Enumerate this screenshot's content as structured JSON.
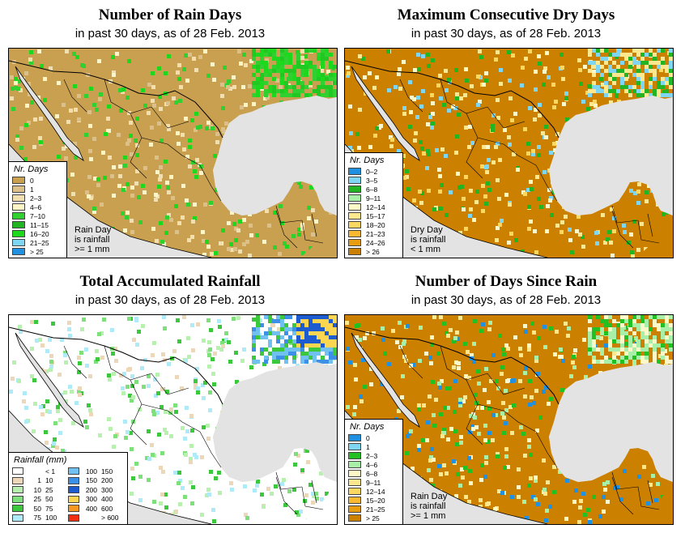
{
  "colors": {
    "rain_0": "#c8a050",
    "rain_1": "#dcc08a",
    "rain_2": "#f2dfb0",
    "rain_4": "#fdf5c6",
    "rain_7": "#2fd02f",
    "rain_11": "#22b422",
    "rain_16": "#1ed81e",
    "rain_21": "#7fd6f2",
    "rain_25": "#2090e0",
    "dry_orange": "#cc8000",
    "water": "#e3e3e3"
  },
  "panels": [
    {
      "id": "rain-days",
      "title": "Number of Rain Days",
      "subtitle": "in past 30 days, as of  28 Feb. 2013",
      "legend_title": "Nr. Days",
      "legend": [
        {
          "label": "0",
          "color": "#c8a050"
        },
        {
          "label": "1",
          "color": "#dcc08a"
        },
        {
          "label": "2–3",
          "color": "#f2dfb0"
        },
        {
          "label": "4–6",
          "color": "#fdf5c6"
        },
        {
          "label": "7–10",
          "color": "#2fd02f"
        },
        {
          "label": "11–15",
          "color": "#22b422"
        },
        {
          "label": "16–20",
          "color": "#1ed81e"
        },
        {
          "label": "21–25",
          "color": "#7fd6f2"
        },
        {
          "label": "> 25",
          "color": "#2090e0"
        }
      ],
      "note": [
        "Rain Day",
        "is rainfall",
        ">= 1 mm"
      ]
    },
    {
      "id": "dry-days",
      "title": "Maximum Consecutive Dry Days",
      "subtitle": "in past 30 days, as of  28 Feb. 2013",
      "legend_title": "Nr. Days",
      "legend": [
        {
          "label": "0–2",
          "color": "#2090e0"
        },
        {
          "label": "3–5",
          "color": "#7fd6f2"
        },
        {
          "label": "6–8",
          "color": "#22b422"
        },
        {
          "label": "9–11",
          "color": "#a8f0a8"
        },
        {
          "label": "12–14",
          "color": "#fdf8c8"
        },
        {
          "label": "15–17",
          "color": "#fde890"
        },
        {
          "label": "18–20",
          "color": "#fcd860"
        },
        {
          "label": "21–23",
          "color": "#f8b830"
        },
        {
          "label": "24–26",
          "color": "#e89c10"
        },
        {
          "label": "> 26",
          "color": "#cc8000"
        }
      ],
      "note": [
        "Dry Day",
        "is rainfall",
        "< 1 mm"
      ]
    },
    {
      "id": "rainfall",
      "title": "Total Accumulated Rainfall",
      "subtitle": "in past 30 days, as of  28 Feb. 2013",
      "legend_title": "Rainfall (mm)",
      "legend_left": [
        {
          "lo": "",
          "hi": "< 1",
          "color": "#ffffff"
        },
        {
          "lo": "1",
          "hi": "10",
          "color": "#ecd8b8"
        },
        {
          "lo": "10",
          "hi": "25",
          "color": "#b8f0b0"
        },
        {
          "lo": "25",
          "hi": "50",
          "color": "#7ee07a"
        },
        {
          "lo": "50",
          "hi": "75",
          "color": "#3cc83c"
        },
        {
          "lo": "75",
          "hi": "100",
          "color": "#aeeaf8"
        }
      ],
      "legend_right": [
        {
          "lo": "100",
          "hi": "150",
          "color": "#70c0f0"
        },
        {
          "lo": "150",
          "hi": "200",
          "color": "#3c90e8"
        },
        {
          "lo": "200",
          "hi": "300",
          "color": "#1c5cd0"
        },
        {
          "lo": "300",
          "hi": "400",
          "color": "#fcd650"
        },
        {
          "lo": "400",
          "hi": "600",
          "color": "#f89820"
        },
        {
          "lo": "",
          "hi": "> 600",
          "color": "#f03010"
        }
      ]
    },
    {
      "id": "since-rain",
      "title": "Number of Days Since Rain",
      "subtitle": "in past 30 days, as of  28 Feb. 2013",
      "legend_title": "Nr. Days",
      "legend": [
        {
          "label": "0",
          "color": "#2090e0"
        },
        {
          "label": "1",
          "color": "#7fd6f2"
        },
        {
          "label": "2–3",
          "color": "#22c022"
        },
        {
          "label": "4–6",
          "color": "#a8f0a8"
        },
        {
          "label": "6–8",
          "color": "#fdf8c8"
        },
        {
          "label": "9–11",
          "color": "#fde890"
        },
        {
          "label": "12–14",
          "color": "#fcd860"
        },
        {
          "label": "15–20",
          "color": "#f8b830"
        },
        {
          "label": "21–25",
          "color": "#e89c10"
        },
        {
          "label": "> 25",
          "color": "#cc8000"
        }
      ],
      "note": [
        "Rain Day",
        "is rainfall",
        ">= 1 mm"
      ]
    }
  ]
}
